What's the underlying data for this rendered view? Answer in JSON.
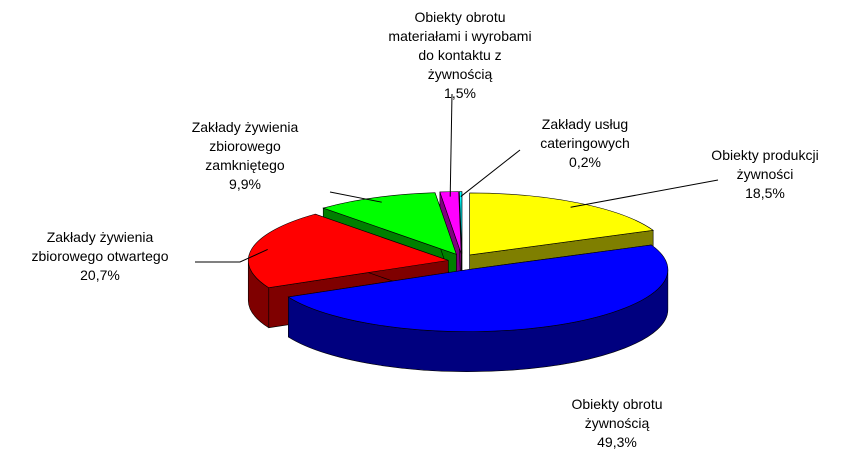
{
  "chart_data": {
    "type": "pie",
    "categories": [
      "Obiekty produkcji\nżywności",
      "Obiekty obrotu\nżywnością",
      "Zakłady żywienia\nzbiorowego otwartego",
      "Zakłady żywienia\nzbiorowego\nzamkniętego",
      "Obiekty obrotu\nmateriałami i wyrobami\ndo kontaktu z\nżywnością",
      "Zakłady usług\ncateringowych"
    ],
    "values": [
      18.5,
      49.3,
      20.7,
      9.9,
      1.5,
      0.2
    ],
    "value_labels": [
      "18,5%",
      "49,3%",
      "20,7%",
      "9,9%",
      "1,5%",
      "0,2%"
    ],
    "colors": [
      "#ffff00",
      "#0000ff",
      "#ff0000",
      "#00ff00",
      "#ff00ff",
      "#00ffff"
    ]
  }
}
